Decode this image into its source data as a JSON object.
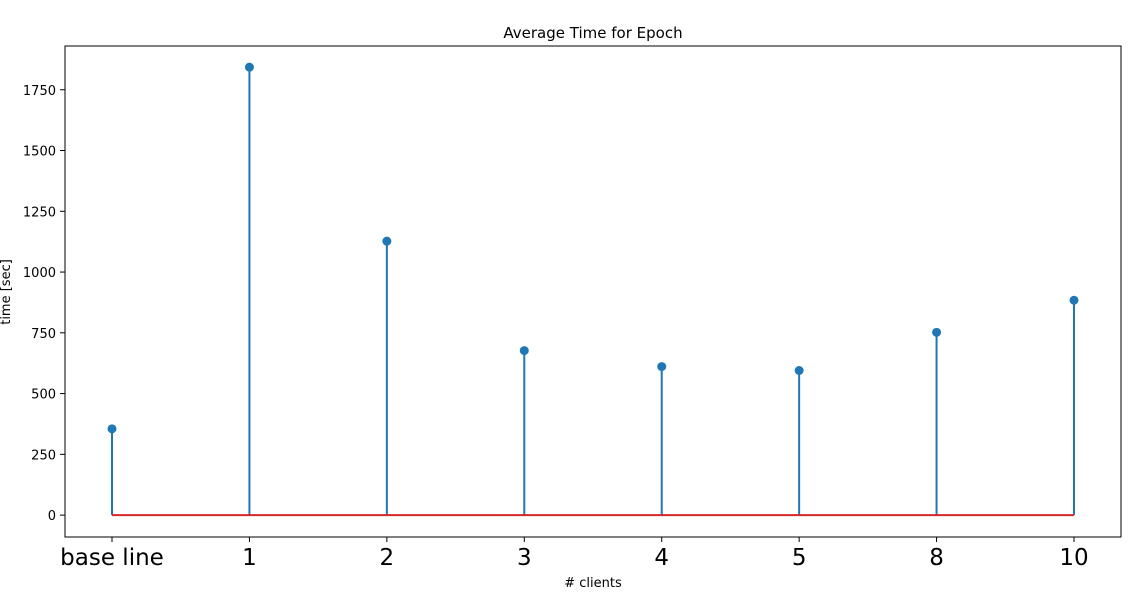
{
  "chart_data": {
    "type": "stem",
    "title": "Average Time for Epoch",
    "xlabel": "# clients",
    "ylabel": "time [sec]",
    "categories": [
      "base line",
      "1",
      "2",
      "3",
      "4",
      "5",
      "8",
      "10"
    ],
    "values": [
      355,
      1843,
      1127,
      677,
      611,
      595,
      752,
      884
    ],
    "ylim": [
      -90,
      1930
    ],
    "yticks": [
      0,
      250,
      500,
      750,
      1000,
      1250,
      1500,
      1750
    ],
    "grid": false,
    "legend": "none",
    "colors": {
      "stem": "#1f77b4",
      "baseline": "#d62728",
      "marker": "#1f77b4"
    }
  }
}
